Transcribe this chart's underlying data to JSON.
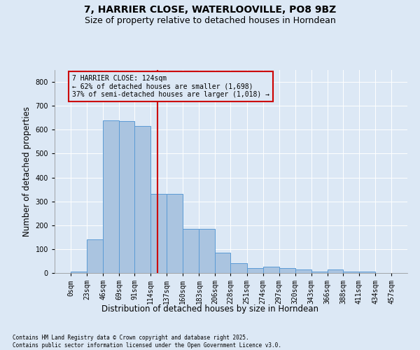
{
  "title": "7, HARRIER CLOSE, WATERLOOVILLE, PO8 9BZ",
  "subtitle": "Size of property relative to detached houses in Horndean",
  "xlabel": "Distribution of detached houses by size in Horndean",
  "ylabel": "Number of detached properties",
  "bin_edges": [
    0,
    23,
    46,
    69,
    91,
    114,
    137,
    160,
    183,
    206,
    228,
    251,
    274,
    297,
    320,
    343,
    366,
    388,
    411,
    434,
    457
  ],
  "bar_heights": [
    5,
    140,
    640,
    635,
    615,
    330,
    330,
    185,
    185,
    85,
    40,
    20,
    25,
    20,
    15,
    5,
    15,
    5,
    5,
    1
  ],
  "bar_color": "#aac4e0",
  "bar_edgecolor": "#5b9bd5",
  "property_size": 124,
  "annotation_title": "7 HARRIER CLOSE: 124sqm",
  "annotation_line1": "← 62% of detached houses are smaller (1,698)",
  "annotation_line2": "37% of semi-detached houses are larger (1,018) →",
  "vline_color": "#cc0000",
  "annotation_box_edgecolor": "#cc0000",
  "background_color": "#dce8f5",
  "plot_bg_color": "#dce8f5",
  "ylim": [
    0,
    850
  ],
  "yticks": [
    0,
    100,
    200,
    300,
    400,
    500,
    600,
    700,
    800
  ],
  "footer_line1": "Contains HM Land Registry data © Crown copyright and database right 2025.",
  "footer_line2": "Contains public sector information licensed under the Open Government Licence v3.0.",
  "title_fontsize": 10,
  "subtitle_fontsize": 9,
  "tick_fontsize": 7,
  "label_fontsize": 8.5
}
